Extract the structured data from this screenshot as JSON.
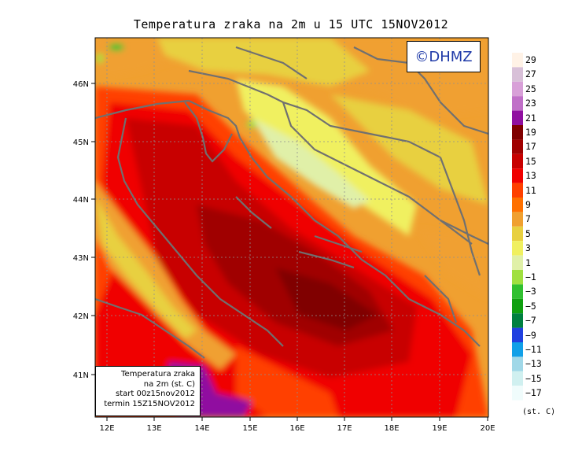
{
  "title": "Temperatura zraka na 2m u 15 UTC 15NOV2012",
  "logo": "©DHMZ",
  "info": {
    "line1": "Temperatura zraka",
    "line2": "na 2m (st. C)",
    "line3": "start 00z15nov2012",
    "line4": "termin 15Z15NOV2012"
  },
  "lat_ticks": [
    "46N",
    "45N",
    "44N",
    "43N",
    "42N",
    "41N"
  ],
  "lon_ticks": [
    "12E",
    "13E",
    "14E",
    "15E",
    "16E",
    "17E",
    "18E",
    "19E",
    "20E"
  ],
  "legend": {
    "labels": [
      "29",
      "27",
      "25",
      "23",
      "21",
      "19",
      "17",
      "15",
      "13",
      "11",
      "9",
      "7",
      "5",
      "3",
      "1",
      "−1",
      "−3",
      "−5",
      "−7",
      "−9",
      "−11",
      "−13",
      "−15",
      "−17"
    ],
    "unit": "(st. C)",
    "colors": [
      "#fff2e6",
      "#d8c0d8",
      "#d8a0d8",
      "#c070c8",
      "#9010a0",
      "#800000",
      "#a00000",
      "#c80000",
      "#f00000",
      "#ff4000",
      "#ff7000",
      "#f0a030",
      "#e8d040",
      "#f0f060",
      "#e0f0a8",
      "#a0e040",
      "#30c030",
      "#10a010",
      "#008040",
      "#2040e0",
      "#10a0e8",
      "#a0d8e8",
      "#d0f0f0",
      "#f0fcfc"
    ]
  }
}
